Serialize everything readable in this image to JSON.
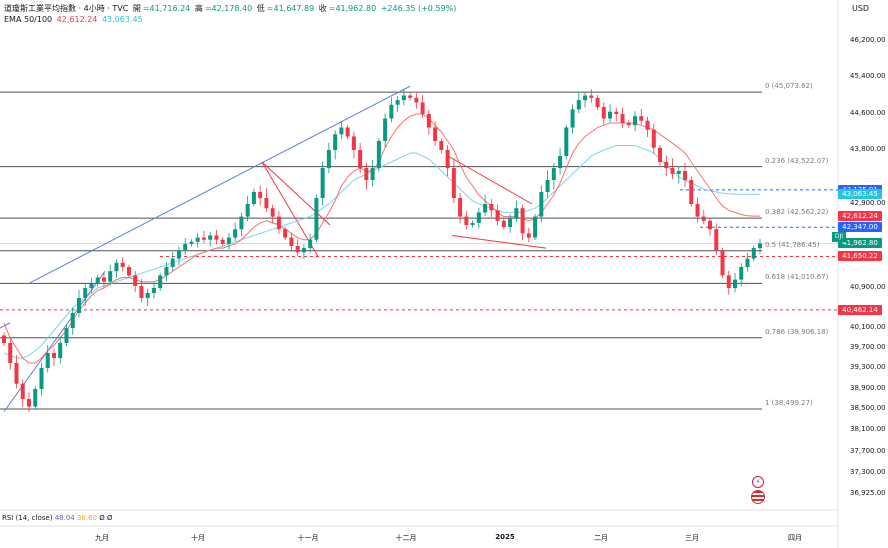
{
  "header": {
    "symbol": "道瓊斯工業平均指數 · 4小時 · TVC",
    "open_label": "開",
    "open": "=41,716.24",
    "high_label": "高",
    "high": "=42,178.40",
    "low_label": "低",
    "low": "=41,647.89",
    "close_label": "收",
    "close": "=41,962.80",
    "change": "+246.35 (+0.59%)",
    "ema_label": "EMA 50/100",
    "ema50": "42,612.24",
    "ema100": "43,063.45"
  },
  "currency": "USD",
  "rsi": {
    "label": "RSI (14, close)",
    "v1": "48.04",
    "v2": "36.60",
    "z1": "Ø",
    "z2": "Ø"
  },
  "dji_tag": "DJI",
  "colors": {
    "up": "#089981",
    "down": "#f23645",
    "ema50": "#f5736e",
    "ema100": "#7bd7e8",
    "trend": "#5b7fd6",
    "wedge": "#f23645",
    "fib": "#505050",
    "dashed_red": "#f23645",
    "dashed_blue": "#2962ff"
  },
  "chart_data": {
    "type": "candlestick",
    "title": "道瓊斯工業平均指數 · 4小時 · TVC",
    "x_ticks": [
      "九月",
      "十月",
      "十一月",
      "十二月",
      "2025",
      "二月",
      "三月",
      "四月"
    ],
    "y_ticks": [
      "46,200.00",
      "45,400.00",
      "44,600.00",
      "43,800.00",
      "42,900.00",
      "40,900.00",
      "40,100.00",
      "39,700.00",
      "39,300.00",
      "38,900.00",
      "38,500.00",
      "38,100.00",
      "37,700.00",
      "37,300.00",
      "36,925.00"
    ],
    "ylim": [
      36600,
      46600
    ],
    "price_tags": [
      {
        "value": 43135.91,
        "label": "43,135.91",
        "color": "#2962ff"
      },
      {
        "value": 43063.45,
        "label": "43,063.45",
        "color": "#26c6da"
      },
      {
        "value": 42612.24,
        "label": "42,612.24",
        "color": "#f23645"
      },
      {
        "value": 42347.0,
        "label": "42,347.00",
        "color": "#2962ff"
      },
      {
        "value": 41962.8,
        "label": "41,962.80",
        "color": "#089981"
      },
      {
        "value": 41650.22,
        "label": "41,650.22",
        "color": "#f23645"
      },
      {
        "value": 40462.14,
        "label": "40,462.14",
        "color": "#f23645"
      }
    ],
    "fib_levels": [
      {
        "label": "0 (45,073.62)",
        "value": 45073.62
      },
      {
        "label": "0.236 (43,522.07)",
        "value": 43522.07
      },
      {
        "label": "0.382 (42,562.22)",
        "value": 42562.22
      },
      {
        "label": "0.5 (41,786.45)",
        "value": 41786.45
      },
      {
        "label": "0.618 (41,010.67)",
        "value": 41010.67
      },
      {
        "label": "0.786 (39,906.18)",
        "value": 39906.18
      },
      {
        "label": "1 (38,499.27)",
        "value": 38499.27
      }
    ],
    "close_series": [
      39800,
      39400,
      39000,
      38700,
      38550,
      38900,
      39300,
      39600,
      39500,
      39800,
      40100,
      40400,
      40700,
      40900,
      41000,
      41150,
      41050,
      41300,
      41500,
      41400,
      41200,
      40950,
      40700,
      40800,
      40900,
      41200,
      41400,
      41600,
      41800,
      41950,
      42000,
      42100,
      42050,
      42150,
      42050,
      41950,
      42100,
      42300,
      42600,
      42900,
      43100,
      43000,
      42800,
      42600,
      42300,
      42100,
      41900,
      41750,
      41850,
      42050,
      43000,
      43500,
      43800,
      44150,
      44300,
      44100,
      43800,
      43500,
      43300,
      43500,
      44000,
      44500,
      44800,
      44900,
      45000,
      44950,
      44850,
      44600,
      44300,
      44000,
      43800,
      43500,
      43000,
      42600,
      42400,
      42450,
      42700,
      42900,
      42750,
      42500,
      42350,
      42550,
      42800,
      42200,
      42100,
      42600,
      43100,
      43300,
      43500,
      43700,
      44300,
      44700,
      44900,
      45000,
      44950,
      44750,
      44500,
      44650,
      44600,
      44400,
      44350,
      44550,
      44450,
      44250,
      43850,
      43600,
      43500,
      43400,
      43450,
      43300,
      42900,
      42600,
      42500,
      42300,
      41800,
      41200,
      40900,
      41100,
      41400,
      41600,
      41850,
      41960
    ],
    "ema50_series": [
      40200,
      39900,
      39700,
      39500,
      39400,
      39400,
      39500,
      39650,
      39750,
      39900,
      40050,
      40250,
      40450,
      40600,
      40750,
      40850,
      40900,
      41000,
      41100,
      41150,
      41150,
      41100,
      41050,
      41050,
      41050,
      41100,
      41200,
      41300,
      41400,
      41500,
      41600,
      41700,
      41750,
      41800,
      41850,
      41850,
      41900,
      41950,
      42050,
      42200,
      42350,
      42450,
      42500,
      42450,
      42400,
      42300,
      42200,
      42100,
      42050,
      42050,
      42200,
      42450,
      42700,
      42950,
      43200,
      43350,
      43450,
      43500,
      43450,
      43450,
      43600,
      43850,
      44100,
      44300,
      44450,
      44550,
      44600,
      44600,
      44500,
      44350,
      44200,
      44000,
      43800,
      43550,
      43350,
      43200,
      43050,
      42950,
      42850,
      42700,
      42600,
      42600,
      42600,
      42550,
      42500,
      42550,
      42700,
      42900,
      43050,
      43250,
      43500,
      43750,
      43950,
      44100,
      44200,
      44300,
      44350,
      44400,
      44400,
      44400,
      44400,
      44400,
      44350,
      44300,
      44250,
      44150,
      44050,
      43950,
      43850,
      43750,
      43600,
      43450,
      43300,
      43150,
      43000,
      42850,
      42750,
      42700,
      42650,
      42620,
      42612,
      42612
    ],
    "ema100_series": [
      39600,
      39550,
      39500,
      39500,
      39550,
      39650,
      39750,
      39900,
      40050,
      40200,
      40350,
      40500,
      40600,
      40700,
      40800,
      40900,
      40950,
      41000,
      41050,
      41100,
      41150,
      41200,
      41250,
      41300,
      41350,
      41400,
      41450,
      41500,
      41550,
      41600,
      41650,
      41700,
      41750,
      41800,
      41850,
      41900,
      41950,
      42000,
      42050,
      42100,
      42150,
      42200,
      42250,
      42300,
      42350,
      42400,
      42450,
      42500,
      42550,
      42600,
      42700,
      42800,
      42900,
      43000,
      43100,
      43200,
      43300,
      43350,
      43400,
      43450,
      43500,
      43550,
      43600,
      43650,
      43700,
      43750,
      43750,
      43700,
      43650,
      43550,
      43450,
      43350,
      43250,
      43150,
      43050,
      42950,
      42900,
      42850,
      42800,
      42750,
      42700,
      42700,
      42700,
      42700,
      42750,
      42800,
      42900,
      43000,
      43100,
      43200,
      43300,
      43400,
      43500,
      43600,
      43700,
      43750,
      43800,
      43850,
      43900,
      43900,
      43900,
      43900,
      43850,
      43800,
      43750,
      43650,
      43550,
      43450,
      43350,
      43300,
      43250,
      43200,
      43150,
      43120,
      43100,
      43080,
      43070,
      43065,
      43063,
      43063,
      43063,
      43063
    ]
  }
}
